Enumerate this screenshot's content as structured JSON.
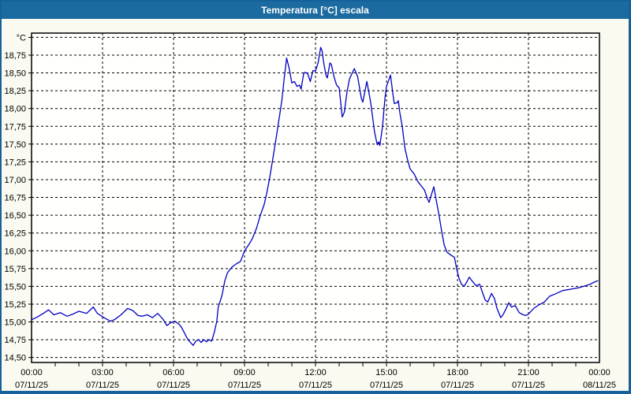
{
  "window": {
    "title": "Temperatura [°C] escala"
  },
  "colors": {
    "titlebar": "#1b6aa0",
    "window_border": "#15619b",
    "background": "#fafaf0",
    "plot_background": "#fffffe",
    "grid": "#000000",
    "axis_text": "#000000",
    "line": "#0000c0"
  },
  "chart_data": {
    "type": "line",
    "title": "Temperatura [°C] escala",
    "ylabel": "°C",
    "xlabel": "",
    "unit_label": "°C",
    "grid": "dashed",
    "legend": "none",
    "xlim": [
      0,
      24
    ],
    "ylim": [
      14.43,
      19.06
    ],
    "y_ticks": [
      {
        "value": 19.0,
        "label": "°C"
      },
      {
        "value": 18.75,
        "label": "18,75"
      },
      {
        "value": 18.5,
        "label": "18,50"
      },
      {
        "value": 18.25,
        "label": "18,25"
      },
      {
        "value": 18.0,
        "label": "18,00"
      },
      {
        "value": 17.75,
        "label": "17,75"
      },
      {
        "value": 17.5,
        "label": "17,50"
      },
      {
        "value": 17.25,
        "label": "17,25"
      },
      {
        "value": 17.0,
        "label": "17,00"
      },
      {
        "value": 16.75,
        "label": "16,75"
      },
      {
        "value": 16.5,
        "label": "16,50"
      },
      {
        "value": 16.25,
        "label": "16,25"
      },
      {
        "value": 16.0,
        "label": "16,00"
      },
      {
        "value": 15.75,
        "label": "15,75"
      },
      {
        "value": 15.5,
        "label": "15,50"
      },
      {
        "value": 15.25,
        "label": "15,25"
      },
      {
        "value": 15.0,
        "label": "15,00"
      },
      {
        "value": 14.75,
        "label": "14,75"
      },
      {
        "value": 14.5,
        "label": "14,50"
      }
    ],
    "x_ticks": [
      {
        "hour": 0,
        "time": "00:00",
        "date": "07/11/25"
      },
      {
        "hour": 3,
        "time": "03:00",
        "date": "07/11/25"
      },
      {
        "hour": 6,
        "time": "06:00",
        "date": "07/11/25"
      },
      {
        "hour": 9,
        "time": "09:00",
        "date": "07/11/25"
      },
      {
        "hour": 12,
        "time": "12:00",
        "date": "07/11/25"
      },
      {
        "hour": 15,
        "time": "15:00",
        "date": "07/11/25"
      },
      {
        "hour": 18,
        "time": "18:00",
        "date": "07/11/25"
      },
      {
        "hour": 21,
        "time": "21:00",
        "date": "07/11/25"
      },
      {
        "hour": 24,
        "time": "00:00",
        "date": "08/11/25"
      }
    ],
    "x_minor_tick_every_hours": 1,
    "series": [
      {
        "name": "Temperatura",
        "color": "#0000c0",
        "points": [
          [
            0.0,
            15.03
          ],
          [
            0.25,
            15.07
          ],
          [
            0.5,
            15.12
          ],
          [
            0.72,
            15.17
          ],
          [
            0.94,
            15.1
          ],
          [
            1.22,
            15.13
          ],
          [
            1.5,
            15.08
          ],
          [
            1.75,
            15.11
          ],
          [
            2.0,
            15.15
          ],
          [
            2.33,
            15.12
          ],
          [
            2.61,
            15.21
          ],
          [
            2.78,
            15.12
          ],
          [
            3.06,
            15.06
          ],
          [
            3.33,
            15.01
          ],
          [
            3.5,
            15.03
          ],
          [
            3.78,
            15.1
          ],
          [
            4.06,
            15.19
          ],
          [
            4.28,
            15.16
          ],
          [
            4.5,
            15.09
          ],
          [
            4.67,
            15.08
          ],
          [
            4.89,
            15.1
          ],
          [
            5.11,
            15.06
          ],
          [
            5.33,
            15.12
          ],
          [
            5.55,
            15.04
          ],
          [
            5.72,
            14.95
          ],
          [
            5.89,
            14.99
          ],
          [
            6.06,
            15.01
          ],
          [
            6.22,
            14.97
          ],
          [
            6.33,
            14.93
          ],
          [
            6.5,
            14.82
          ],
          [
            6.61,
            14.75
          ],
          [
            6.72,
            14.71
          ],
          [
            6.83,
            14.67
          ],
          [
            6.94,
            14.73
          ],
          [
            7.06,
            14.75
          ],
          [
            7.17,
            14.71
          ],
          [
            7.28,
            14.75
          ],
          [
            7.39,
            14.72
          ],
          [
            7.5,
            14.75
          ],
          [
            7.61,
            14.73
          ],
          [
            7.72,
            14.85
          ],
          [
            7.83,
            15.01
          ],
          [
            7.89,
            15.21
          ],
          [
            8.0,
            15.32
          ],
          [
            8.06,
            15.39
          ],
          [
            8.11,
            15.48
          ],
          [
            8.17,
            15.58
          ],
          [
            8.28,
            15.69
          ],
          [
            8.39,
            15.74
          ],
          [
            8.5,
            15.78
          ],
          [
            8.67,
            15.82
          ],
          [
            8.83,
            15.85
          ],
          [
            9.0,
            16.0
          ],
          [
            9.17,
            16.08
          ],
          [
            9.33,
            16.17
          ],
          [
            9.5,
            16.31
          ],
          [
            9.67,
            16.5
          ],
          [
            9.83,
            16.65
          ],
          [
            9.94,
            16.81
          ],
          [
            10.06,
            17.02
          ],
          [
            10.17,
            17.24
          ],
          [
            10.33,
            17.57
          ],
          [
            10.5,
            17.94
          ],
          [
            10.58,
            18.12
          ],
          [
            10.67,
            18.4
          ],
          [
            10.78,
            18.71
          ],
          [
            10.89,
            18.56
          ],
          [
            11.0,
            18.36
          ],
          [
            11.11,
            18.38
          ],
          [
            11.22,
            18.31
          ],
          [
            11.33,
            18.33
          ],
          [
            11.39,
            18.27
          ],
          [
            11.5,
            18.49
          ],
          [
            11.56,
            18.51
          ],
          [
            11.67,
            18.49
          ],
          [
            11.78,
            18.38
          ],
          [
            11.89,
            18.53
          ],
          [
            12.0,
            18.53
          ],
          [
            12.11,
            18.64
          ],
          [
            12.22,
            18.86
          ],
          [
            12.28,
            18.81
          ],
          [
            12.33,
            18.68
          ],
          [
            12.44,
            18.47
          ],
          [
            12.5,
            18.43
          ],
          [
            12.61,
            18.64
          ],
          [
            12.67,
            18.62
          ],
          [
            12.78,
            18.45
          ],
          [
            12.89,
            18.33
          ],
          [
            13.0,
            18.29
          ],
          [
            13.13,
            17.88
          ],
          [
            13.22,
            17.95
          ],
          [
            13.33,
            18.23
          ],
          [
            13.44,
            18.42
          ],
          [
            13.64,
            18.56
          ],
          [
            13.78,
            18.45
          ],
          [
            13.94,
            18.14
          ],
          [
            14.0,
            18.09
          ],
          [
            14.17,
            18.38
          ],
          [
            14.33,
            18.09
          ],
          [
            14.5,
            17.66
          ],
          [
            14.61,
            17.49
          ],
          [
            14.67,
            17.53
          ],
          [
            14.72,
            17.48
          ],
          [
            14.83,
            17.74
          ],
          [
            14.94,
            18.16
          ],
          [
            15.0,
            18.31
          ],
          [
            15.17,
            18.47
          ],
          [
            15.28,
            18.18
          ],
          [
            15.33,
            18.07
          ],
          [
            15.44,
            18.08
          ],
          [
            15.5,
            18.11
          ],
          [
            15.56,
            17.95
          ],
          [
            15.67,
            17.74
          ],
          [
            15.78,
            17.44
          ],
          [
            15.89,
            17.28
          ],
          [
            16.0,
            17.15
          ],
          [
            16.17,
            17.08
          ],
          [
            16.33,
            16.97
          ],
          [
            16.5,
            16.9
          ],
          [
            16.61,
            16.85
          ],
          [
            16.72,
            16.74
          ],
          [
            16.8,
            16.68
          ],
          [
            16.89,
            16.78
          ],
          [
            17.0,
            16.9
          ],
          [
            17.11,
            16.7
          ],
          [
            17.22,
            16.5
          ],
          [
            17.33,
            16.28
          ],
          [
            17.44,
            16.08
          ],
          [
            17.56,
            15.98
          ],
          [
            17.72,
            15.94
          ],
          [
            17.87,
            15.91
          ],
          [
            17.97,
            15.74
          ],
          [
            18.06,
            15.62
          ],
          [
            18.17,
            15.53
          ],
          [
            18.28,
            15.5
          ],
          [
            18.39,
            15.56
          ],
          [
            18.5,
            15.63
          ],
          [
            18.61,
            15.58
          ],
          [
            18.78,
            15.51
          ],
          [
            18.94,
            15.53
          ],
          [
            19.06,
            15.41
          ],
          [
            19.17,
            15.31
          ],
          [
            19.28,
            15.28
          ],
          [
            19.44,
            15.4
          ],
          [
            19.56,
            15.33
          ],
          [
            19.67,
            15.19
          ],
          [
            19.83,
            15.06
          ],
          [
            19.94,
            15.11
          ],
          [
            20.06,
            15.19
          ],
          [
            20.17,
            15.27
          ],
          [
            20.28,
            15.21
          ],
          [
            20.44,
            15.23
          ],
          [
            20.61,
            15.13
          ],
          [
            20.78,
            15.1
          ],
          [
            20.89,
            15.09
          ],
          [
            21.0,
            15.11
          ],
          [
            21.22,
            15.19
          ],
          [
            21.44,
            15.24
          ],
          [
            21.67,
            15.28
          ],
          [
            21.89,
            15.36
          ],
          [
            22.11,
            15.39
          ],
          [
            22.44,
            15.44
          ],
          [
            22.78,
            15.46
          ],
          [
            23.11,
            15.48
          ],
          [
            23.33,
            15.5
          ],
          [
            23.61,
            15.53
          ],
          [
            23.78,
            15.56
          ],
          [
            23.93,
            15.58
          ]
        ]
      }
    ]
  }
}
